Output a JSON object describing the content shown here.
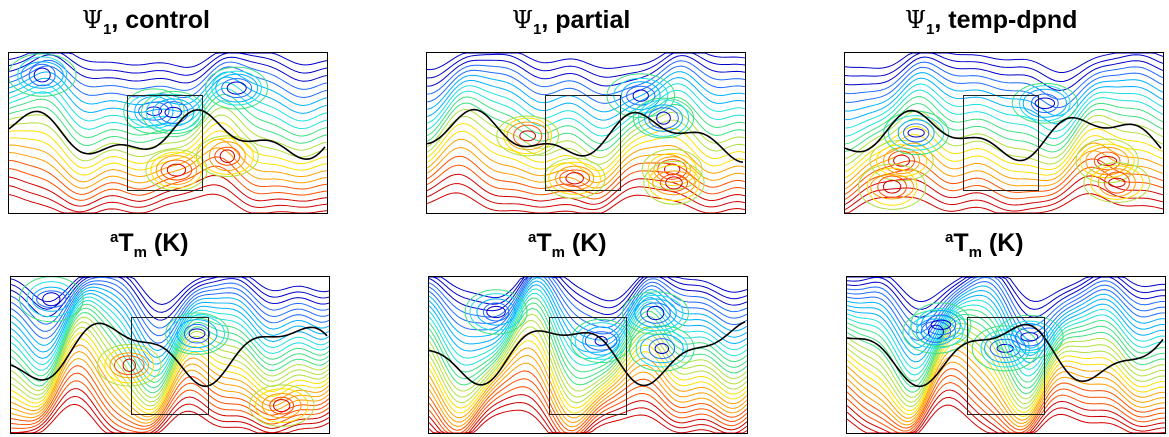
{
  "columns": [
    {
      "psi_title": {
        "symbol": "Ψ",
        "sub": "1",
        "suffix": ", control"
      },
      "tm_title": {
        "sup": "a",
        "main": "T",
        "sub": "m",
        "suffix": " (K)"
      }
    },
    {
      "psi_title": {
        "symbol": "Ψ",
        "sub": "1",
        "suffix": ", partial"
      },
      "tm_title": {
        "sup": "a",
        "main": "T",
        "sub": "m",
        "suffix": " (K)"
      }
    },
    {
      "psi_title": {
        "symbol": "Ψ",
        "sub": "1",
        "suffix": ", temp-dpnd"
      },
      "tm_title": {
        "sup": "a",
        "main": "T",
        "sub": "m",
        "suffix": " (K)"
      }
    }
  ],
  "colors": {
    "colormap": [
      "#0000c8",
      "#1e6bff",
      "#00b0ff",
      "#20e0e0",
      "#40e080",
      "#b0e040",
      "#ffe000",
      "#ffa000",
      "#ff5000",
      "#d00000"
    ],
    "zero_contour": "#000000",
    "inset_box": "#222222"
  }
}
